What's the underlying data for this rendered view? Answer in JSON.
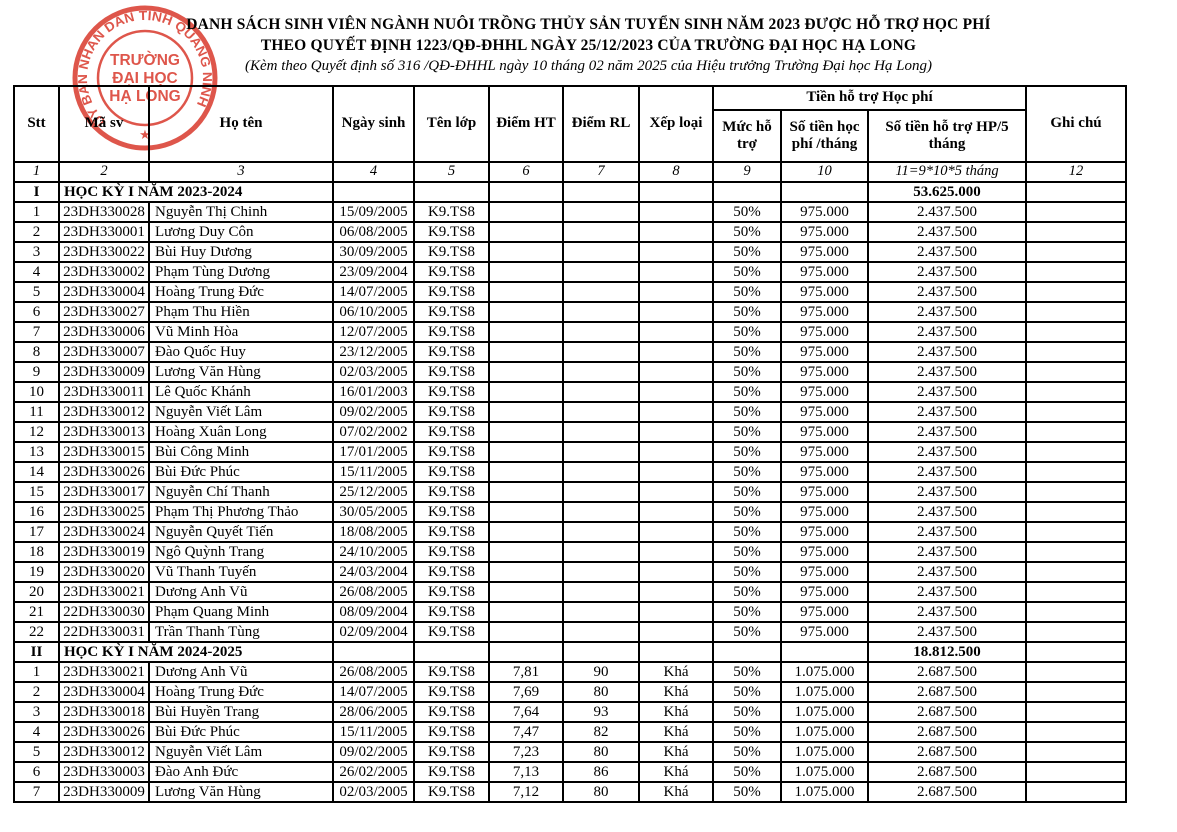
{
  "title": {
    "line1": "DANH SÁCH SINH VIÊN NGÀNH NUÔI TRỒNG THỦY SẢN TUYỂN SINH NĂM 2023 ĐƯỢC HỖ TRỢ HỌC PHÍ",
    "line2": "THEO QUYẾT ĐỊNH 1223/QĐ-ĐHHL NGÀY 25/12/2023 CỦA TRƯỜNG ĐẠI HỌC HẠ LONG",
    "line3": "(Kèm theo Quyết định số 316 /QĐ-ĐHHL ngày 10 tháng 02 năm 2025 của Hiệu trưởng Trường Đại học Hạ Long)"
  },
  "stamp": {
    "ring_text": "ỦY BAN NHÂN DÂN TỈNH QUẢNG NINH",
    "center_line1": "TRƯỜNG",
    "center_line2": "ĐẠI HỌC",
    "center_line3": "HẠ LONG",
    "star": "★",
    "color": "#d9382b"
  },
  "table": {
    "group_header": "Tiền hỗ trợ Học phí",
    "columns": [
      "Stt",
      "Mã sv",
      "Họ tên",
      "Ngày sinh",
      "Tên lớp",
      "Điểm HT",
      "Điểm RL",
      "Xếp loại",
      "Mức hỗ trợ",
      "Số tiền học phí /tháng",
      "Số tiền hỗ trợ HP/5 tháng",
      "Ghi chú"
    ],
    "index_row": [
      "1",
      "2",
      "3",
      "4",
      "5",
      "6",
      "7",
      "8",
      "9",
      "10",
      "11=9*10*5 tháng",
      "12"
    ],
    "sections": [
      {
        "no": "I",
        "label": "HỌC KỲ I NĂM 2023-2024",
        "total": "53.625.000",
        "rows": [
          [
            "1",
            "23DH330028",
            "Nguyễn Thị Chinh",
            "15/09/2005",
            "K9.TS8",
            "",
            "",
            "",
            "50%",
            "975.000",
            "2.437.500",
            ""
          ],
          [
            "2",
            "23DH330001",
            "Lương Duy Côn",
            "06/08/2005",
            "K9.TS8",
            "",
            "",
            "",
            "50%",
            "975.000",
            "2.437.500",
            ""
          ],
          [
            "3",
            "23DH330022",
            "Bùi Huy Dương",
            "30/09/2005",
            "K9.TS8",
            "",
            "",
            "",
            "50%",
            "975.000",
            "2.437.500",
            ""
          ],
          [
            "4",
            "23DH330002",
            "Phạm Tùng Dương",
            "23/09/2004",
            "K9.TS8",
            "",
            "",
            "",
            "50%",
            "975.000",
            "2.437.500",
            ""
          ],
          [
            "5",
            "23DH330004",
            "Hoàng Trung Đức",
            "14/07/2005",
            "K9.TS8",
            "",
            "",
            "",
            "50%",
            "975.000",
            "2.437.500",
            ""
          ],
          [
            "6",
            "23DH330027",
            "Phạm Thu Hiền",
            "06/10/2005",
            "K9.TS8",
            "",
            "",
            "",
            "50%",
            "975.000",
            "2.437.500",
            ""
          ],
          [
            "7",
            "23DH330006",
            "Vũ Minh Hòa",
            "12/07/2005",
            "K9.TS8",
            "",
            "",
            "",
            "50%",
            "975.000",
            "2.437.500",
            ""
          ],
          [
            "8",
            "23DH330007",
            "Đào Quốc Huy",
            "23/12/2005",
            "K9.TS8",
            "",
            "",
            "",
            "50%",
            "975.000",
            "2.437.500",
            ""
          ],
          [
            "9",
            "23DH330009",
            "Lương Văn Hùng",
            "02/03/2005",
            "K9.TS8",
            "",
            "",
            "",
            "50%",
            "975.000",
            "2.437.500",
            ""
          ],
          [
            "10",
            "23DH330011",
            "Lê Quốc Khánh",
            "16/01/2003",
            "K9.TS8",
            "",
            "",
            "",
            "50%",
            "975.000",
            "2.437.500",
            ""
          ],
          [
            "11",
            "23DH330012",
            "Nguyễn Viết Lâm",
            "09/02/2005",
            "K9.TS8",
            "",
            "",
            "",
            "50%",
            "975.000",
            "2.437.500",
            ""
          ],
          [
            "12",
            "23DH330013",
            "Hoàng Xuân Long",
            "07/02/2002",
            "K9.TS8",
            "",
            "",
            "",
            "50%",
            "975.000",
            "2.437.500",
            ""
          ],
          [
            "13",
            "23DH330015",
            "Bùi Công Minh",
            "17/01/2005",
            "K9.TS8",
            "",
            "",
            "",
            "50%",
            "975.000",
            "2.437.500",
            ""
          ],
          [
            "14",
            "23DH330026",
            "Bùi Đức Phúc",
            "15/11/2005",
            "K9.TS8",
            "",
            "",
            "",
            "50%",
            "975.000",
            "2.437.500",
            ""
          ],
          [
            "15",
            "23DH330017",
            "Nguyễn Chí Thanh",
            "25/12/2005",
            "K9.TS8",
            "",
            "",
            "",
            "50%",
            "975.000",
            "2.437.500",
            ""
          ],
          [
            "16",
            "23DH330025",
            "Phạm Thị Phương Thảo",
            "30/05/2005",
            "K9.TS8",
            "",
            "",
            "",
            "50%",
            "975.000",
            "2.437.500",
            ""
          ],
          [
            "17",
            "23DH330024",
            "Nguyễn Quyết Tiến",
            "18/08/2005",
            "K9.TS8",
            "",
            "",
            "",
            "50%",
            "975.000",
            "2.437.500",
            ""
          ],
          [
            "18",
            "23DH330019",
            "Ngô Quỳnh Trang",
            "24/10/2005",
            "K9.TS8",
            "",
            "",
            "",
            "50%",
            "975.000",
            "2.437.500",
            ""
          ],
          [
            "19",
            "23DH330020",
            "Vũ Thanh Tuyến",
            "24/03/2004",
            "K9.TS8",
            "",
            "",
            "",
            "50%",
            "975.000",
            "2.437.500",
            ""
          ],
          [
            "20",
            "23DH330021",
            "Dương Anh Vũ",
            "26/08/2005",
            "K9.TS8",
            "",
            "",
            "",
            "50%",
            "975.000",
            "2.437.500",
            ""
          ],
          [
            "21",
            "22DH330030",
            "Phạm Quang Minh",
            "08/09/2004",
            "K9.TS8",
            "",
            "",
            "",
            "50%",
            "975.000",
            "2.437.500",
            ""
          ],
          [
            "22",
            "22DH330031",
            "Trần Thanh Tùng",
            "02/09/2004",
            "K9.TS8",
            "",
            "",
            "",
            "50%",
            "975.000",
            "2.437.500",
            ""
          ]
        ]
      },
      {
        "no": "II",
        "label": "HỌC KỲ I NĂM 2024-2025",
        "total": "18.812.500",
        "rows": [
          [
            "1",
            "23DH330021",
            "Dương Anh Vũ",
            "26/08/2005",
            "K9.TS8",
            "7,81",
            "90",
            "Khá",
            "50%",
            "1.075.000",
            "2.687.500",
            ""
          ],
          [
            "2",
            "23DH330004",
            "Hoàng Trung Đức",
            "14/07/2005",
            "K9.TS8",
            "7,69",
            "80",
            "Khá",
            "50%",
            "1.075.000",
            "2.687.500",
            ""
          ],
          [
            "3",
            "23DH330018",
            "Bùi Huyền Trang",
            "28/06/2005",
            "K9.TS8",
            "7,64",
            "93",
            "Khá",
            "50%",
            "1.075.000",
            "2.687.500",
            ""
          ],
          [
            "4",
            "23DH330026",
            "Bùi Đức Phúc",
            "15/11/2005",
            "K9.TS8",
            "7,47",
            "82",
            "Khá",
            "50%",
            "1.075.000",
            "2.687.500",
            ""
          ],
          [
            "5",
            "23DH330012",
            "Nguyễn Viết Lâm",
            "09/02/2005",
            "K9.TS8",
            "7,23",
            "80",
            "Khá",
            "50%",
            "1.075.000",
            "2.687.500",
            ""
          ],
          [
            "6",
            "23DH330003",
            "Đào Anh Đức",
            "26/02/2005",
            "K9.TS8",
            "7,13",
            "86",
            "Khá",
            "50%",
            "1.075.000",
            "2.687.500",
            ""
          ],
          [
            "7",
            "23DH330009",
            "Lương Văn Hùng",
            "02/03/2005",
            "K9.TS8",
            "7,12",
            "80",
            "Khá",
            "50%",
            "1.075.000",
            "2.687.500",
            ""
          ]
        ]
      }
    ]
  }
}
